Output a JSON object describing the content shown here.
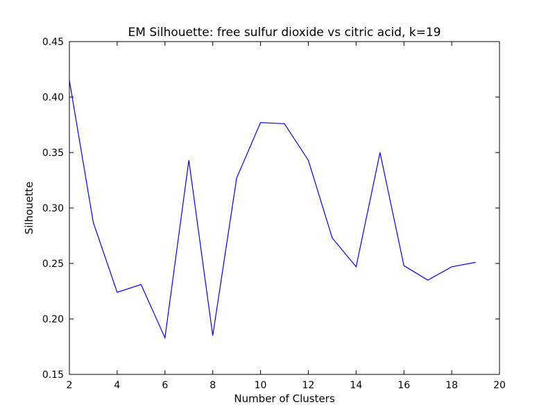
{
  "chart_data": {
    "type": "line",
    "title": "EM Silhouette: free sulfur dioxide vs citric acid, k=19",
    "xlabel": "Number of Clusters",
    "ylabel": "Silhouette",
    "xlim": [
      2,
      20
    ],
    "ylim": [
      0.15,
      0.45
    ],
    "xticks": [
      2,
      4,
      6,
      8,
      10,
      12,
      14,
      16,
      18,
      20
    ],
    "yticks": [
      0.15,
      0.2,
      0.25,
      0.3,
      0.35,
      0.4,
      0.45
    ],
    "ytick_labels": [
      "0.15",
      "0.20",
      "0.25",
      "0.30",
      "0.35",
      "0.40",
      "0.45"
    ],
    "grid": false,
    "series": [
      {
        "color": "#0000ff",
        "x": [
          2,
          3,
          4,
          5,
          6,
          7,
          8,
          9,
          10,
          11,
          12,
          13,
          14,
          15,
          16,
          17,
          18,
          19
        ],
        "y": [
          0.415,
          0.287,
          0.224,
          0.231,
          0.183,
          0.343,
          0.185,
          0.327,
          0.377,
          0.376,
          0.343,
          0.273,
          0.247,
          0.35,
          0.248,
          0.235,
          0.247,
          0.251
        ]
      }
    ]
  }
}
